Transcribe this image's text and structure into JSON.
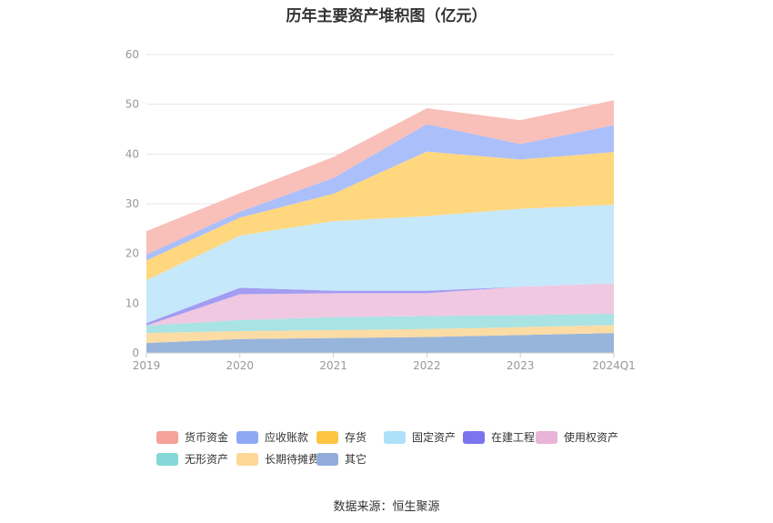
{
  "chart_data": {
    "type": "area",
    "title": "历年主要资产堆积图（亿元）",
    "categories": [
      "2019",
      "2020",
      "2021",
      "2022",
      "2023",
      "2024Q1"
    ],
    "ylim": [
      0,
      60
    ],
    "yticks": [
      0,
      10,
      20,
      30,
      40,
      50,
      60
    ],
    "grid": true,
    "legend_position": "bottom",
    "stacked": true,
    "series": [
      {
        "name": "其它",
        "color": "#97b5db",
        "values": [
          2.0,
          2.8,
          3.0,
          3.2,
          3.6,
          4.0
        ]
      },
      {
        "name": "长期待摊费用",
        "color": "#fbdca5",
        "values": [
          2.0,
          1.6,
          1.6,
          1.6,
          1.6,
          1.6
        ]
      },
      {
        "name": "无形资产",
        "color": "#a9e3e3",
        "values": [
          1.5,
          2.2,
          2.6,
          2.6,
          2.4,
          2.3
        ]
      },
      {
        "name": "使用权资产",
        "color": "#f0c8e2",
        "values": [
          0.0,
          5.2,
          4.8,
          4.6,
          5.7,
          6.1
        ]
      },
      {
        "name": "在建工程",
        "color": "#a39cf2",
        "values": [
          0.5,
          1.3,
          0.5,
          0.5,
          0.0,
          0.0
        ]
      },
      {
        "name": "固定资产",
        "color": "#c6e8fb",
        "values": [
          8.6,
          10.5,
          14.0,
          15.0,
          15.7,
          15.8
        ]
      },
      {
        "name": "存货",
        "color": "#ffd77f",
        "values": [
          4.0,
          3.6,
          5.5,
          13.0,
          9.9,
          10.6
        ]
      },
      {
        "name": "应收账款",
        "color": "#abbffa",
        "values": [
          1.2,
          1.2,
          3.2,
          5.5,
          3.1,
          5.4
        ]
      },
      {
        "name": "货币资金",
        "color": "#f9bfb9",
        "values": [
          4.7,
          3.7,
          4.2,
          3.2,
          4.8,
          5.0
        ]
      }
    ]
  },
  "legend": [
    {
      "label": "货币资金",
      "color": "#f4a29a"
    },
    {
      "label": "应收账款",
      "color": "#8ea8f5"
    },
    {
      "label": "存货",
      "color": "#fec543"
    },
    {
      "label": "固定资产",
      "color": "#aee0fa"
    },
    {
      "label": "在建工程",
      "color": "#7b74ee"
    },
    {
      "label": "使用权资产",
      "color": "#e8b4d8"
    },
    {
      "label": "无形资产",
      "color": "#86d8d8"
    },
    {
      "label": "长期待摊费用",
      "color": "#fdd796"
    },
    {
      "label": "其它",
      "color": "#93addb"
    }
  ],
  "source": "数据来源：恒生聚源"
}
